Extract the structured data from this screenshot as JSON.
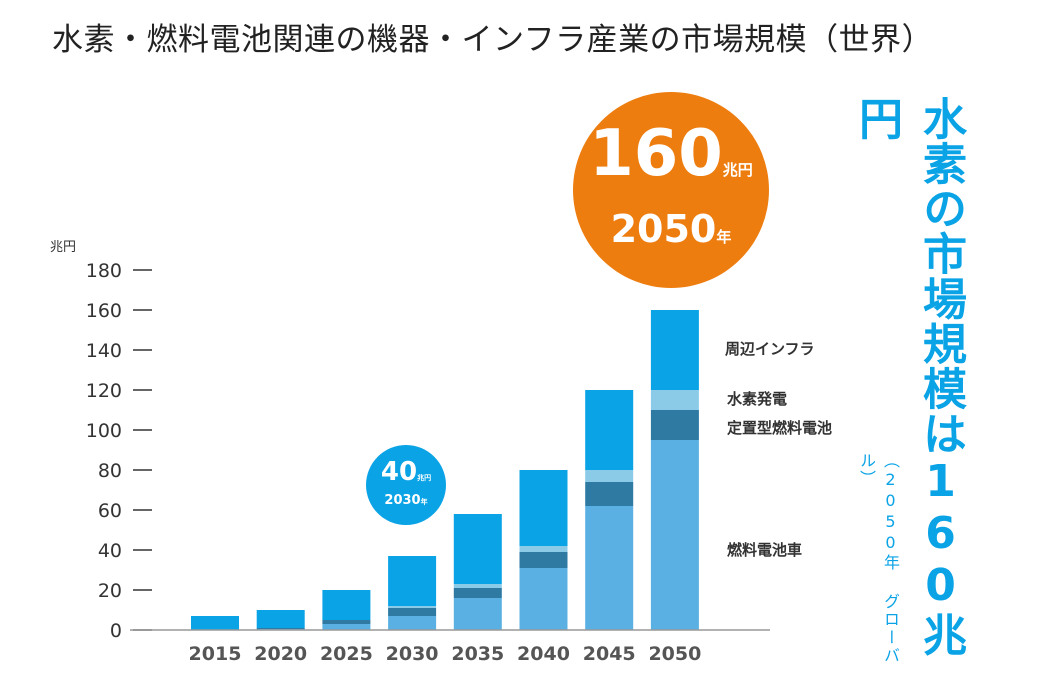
{
  "title": "水素・燃料電池関連の機器・インフラ産業の市場規模（世界）",
  "unit": "兆円",
  "callout_2050": {
    "value": "160",
    "unit": "兆円",
    "year": "2050",
    "year_suffix": "年"
  },
  "callout_2030": {
    "value": "40",
    "unit": "兆円",
    "year": "2030",
    "year_suffix": "年"
  },
  "side_headline": "水素の市場規模は160兆円",
  "side_note": "（2050年 グローバル）",
  "colors": {
    "fcv": "#5ab0e2",
    "stationary": "#2e7aa3",
    "hydrogen_power": "#8ccbe8",
    "infra": "#0aa3e6",
    "big_bubble": "#ee7d0f"
  },
  "chart_data": {
    "type": "bar",
    "stacked": true,
    "categories": [
      "2015",
      "2020",
      "2025",
      "2030",
      "2035",
      "2040",
      "2045",
      "2050"
    ],
    "series": [
      {
        "name": "燃料電池車",
        "values": [
          0,
          0.5,
          3,
          7,
          16,
          31,
          62,
          95
        ]
      },
      {
        "name": "定置型燃料電池",
        "values": [
          0,
          0.5,
          2,
          4,
          5,
          8,
          12,
          15
        ]
      },
      {
        "name": "水素発電",
        "values": [
          0,
          0,
          0,
          1,
          2,
          3,
          6,
          10
        ]
      },
      {
        "name": "周辺インフラ",
        "values": [
          7,
          9,
          15,
          25,
          35,
          38,
          40,
          40
        ]
      }
    ],
    "ylabel": "兆円",
    "ylim": [
      0,
      180
    ],
    "yticks": [
      0,
      20,
      40,
      60,
      80,
      100,
      120,
      140,
      160,
      180
    ],
    "legend_placement": "right"
  }
}
